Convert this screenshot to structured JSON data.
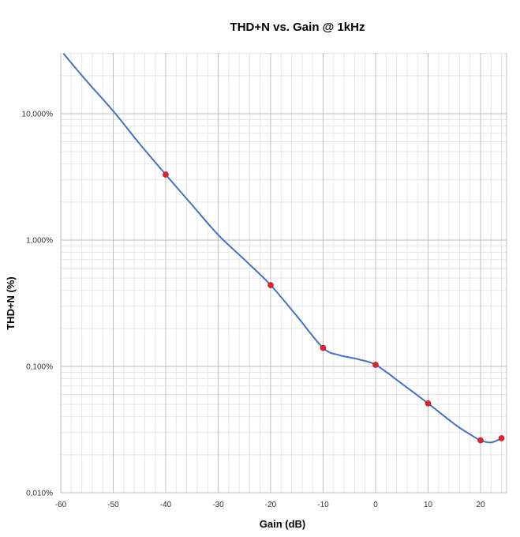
{
  "chart_data": {
    "type": "line",
    "title": "THD+N vs. Gain @ 1kHz",
    "xlabel": "Gain (dB)",
    "ylabel": "THD+N  (%)",
    "xlim": [
      -60,
      25
    ],
    "ylim": [
      0.01,
      30
    ],
    "yscale": "log",
    "grid": true,
    "legend": "none",
    "xticks": [
      -60,
      -50,
      -40,
      -30,
      -20,
      -10,
      0,
      10,
      20
    ],
    "xtick_labels": [
      "-60",
      "-50",
      "-40",
      "-30",
      "-20",
      "-10",
      "0",
      "10",
      "20"
    ],
    "yticks": [
      0.01,
      0.1,
      1,
      10
    ],
    "ytick_labels": [
      "0,010%",
      "0,100%",
      "1,000%",
      "10,000%"
    ],
    "line_color": "#4472c4",
    "marker_color": "#e8202a",
    "series": [
      {
        "x": [
          -40,
          -20,
          -10,
          0,
          10,
          20,
          24
        ],
        "y": [
          3.3,
          0.44,
          0.14,
          0.103,
          0.051,
          0.026,
          0.027
        ]
      }
    ],
    "curve": {
      "x": [
        -59.5,
        -55,
        -50,
        -45,
        -40,
        -35,
        -30,
        -25,
        -20,
        -15,
        -10,
        -7,
        -5,
        -3,
        0,
        5,
        10,
        15,
        18,
        20,
        22,
        24
      ],
      "y": [
        30,
        18,
        10.5,
        5.8,
        3.3,
        1.9,
        1.1,
        0.7,
        0.44,
        0.25,
        0.14,
        0.123,
        0.118,
        0.113,
        0.103,
        0.073,
        0.051,
        0.035,
        0.029,
        0.026,
        0.025,
        0.027
      ]
    }
  }
}
